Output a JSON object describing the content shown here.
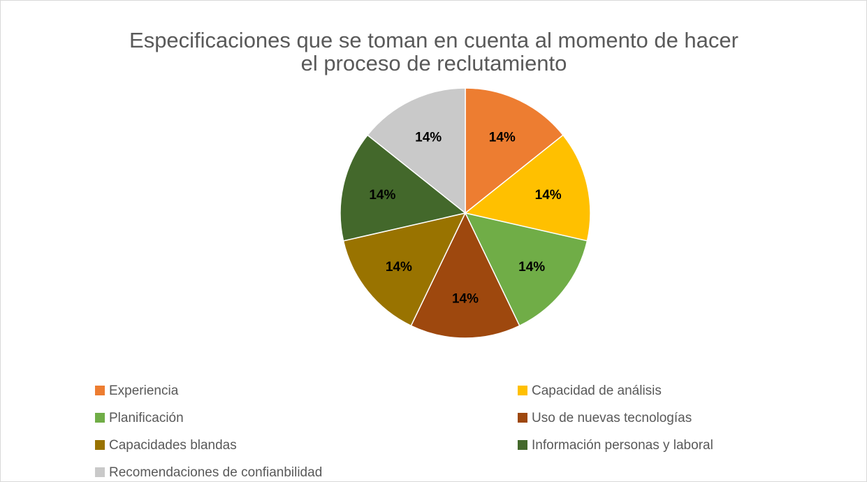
{
  "chart_data": {
    "type": "pie",
    "title": "Especificaciones que se toman en cuenta al momento de hacer el proceso de reclutamiento",
    "categories": [
      "Experiencia",
      "Capacidad de análisis",
      "Planificación",
      "Uso de nuevas tecnologías",
      "Capacidades blandas",
      "Información personas y laboral",
      "Recomendaciones de confianbilidad"
    ],
    "values": [
      14,
      14,
      14,
      14,
      14,
      14,
      14
    ],
    "value_labels": [
      "14%",
      "14%",
      "14%",
      "14%",
      "14%",
      "14%",
      "14%"
    ],
    "colors": [
      "#ED7D31",
      "#FFC000",
      "#70AD47",
      "#9E480E",
      "#997300",
      "#43682B",
      "#C9C9C9"
    ],
    "legend": "bottom"
  }
}
